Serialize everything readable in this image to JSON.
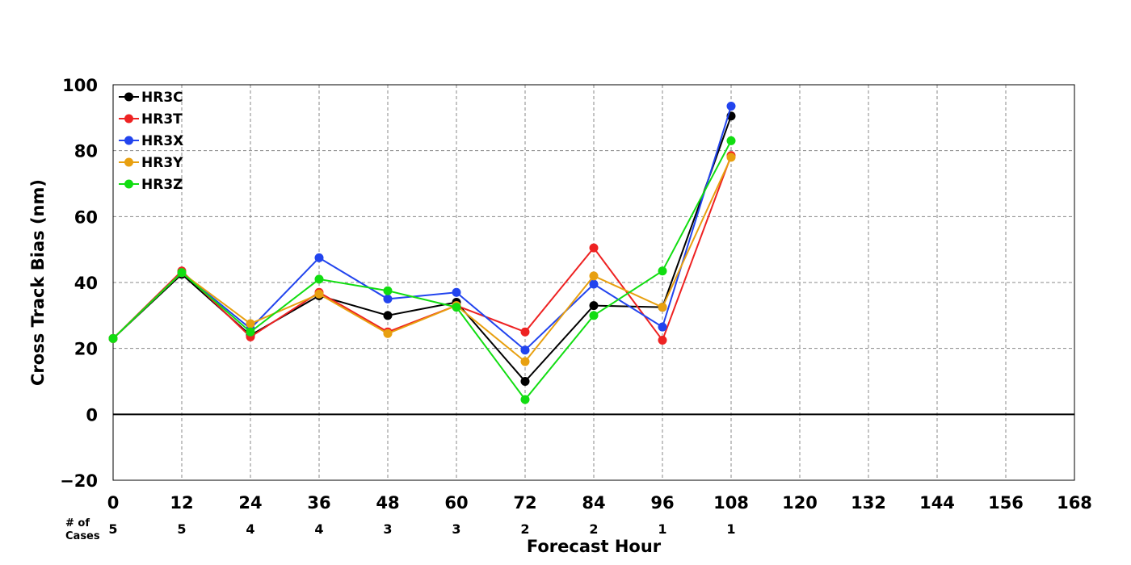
{
  "chart_data": {
    "type": "line",
    "xlabel": "Forecast Hour",
    "ylabel": "Cross Track Bias (nm)",
    "xlim": [
      0,
      168
    ],
    "ylim": [
      -20,
      100
    ],
    "x_ticks": [
      0,
      12,
      24,
      36,
      48,
      60,
      72,
      84,
      96,
      108,
      120,
      132,
      144,
      156,
      168
    ],
    "x_tick_labels": [
      "0",
      "12",
      "24",
      "36",
      "48",
      "60",
      "72",
      "84",
      "96",
      "108",
      "120",
      "132",
      "144",
      "156",
      "168"
    ],
    "y_ticks": [
      -20,
      0,
      20,
      40,
      60,
      80,
      100
    ],
    "y_tick_labels": [
      "−20",
      "0",
      "20",
      "40",
      "60",
      "80",
      "100"
    ],
    "grid": true,
    "legend_position": "top-left",
    "cases_label": "# of\nCases",
    "cases": [
      "5",
      "5",
      "4",
      "4",
      "3",
      "3",
      "2",
      "2",
      "1",
      "1"
    ],
    "x": [
      0,
      12,
      24,
      36,
      48,
      60,
      72,
      84,
      96,
      108
    ],
    "series": [
      {
        "name": "HR3C",
        "color": "#000000",
        "values": [
          23,
          42.5,
          24,
          36,
          30,
          34,
          10,
          33,
          32.5,
          90.5
        ]
      },
      {
        "name": "HR3T",
        "color": "#ee2222",
        "values": [
          23,
          43.5,
          23.5,
          37,
          25,
          33,
          25,
          50.5,
          22.5,
          78.5
        ]
      },
      {
        "name": "HR3X",
        "color": "#2244ee",
        "values": [
          23,
          43,
          26,
          47.5,
          35,
          37,
          19.5,
          39.5,
          26.5,
          93.5
        ]
      },
      {
        "name": "HR3Y",
        "color": "#e8a010",
        "values": [
          23,
          43,
          27.5,
          36.5,
          24.5,
          33,
          16,
          42,
          32.5,
          78
        ]
      },
      {
        "name": "HR3Z",
        "color": "#11dd11",
        "values": [
          23,
          43,
          25,
          41,
          37.5,
          32.5,
          4.5,
          30,
          43.5,
          83
        ]
      }
    ]
  }
}
